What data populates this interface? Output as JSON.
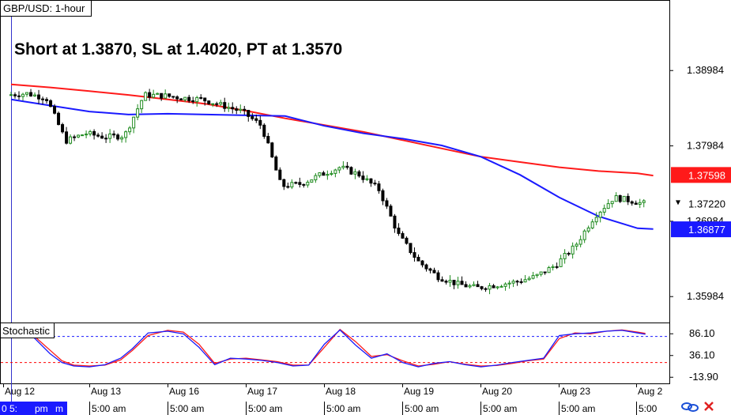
{
  "chart_data": [
    {
      "type": "candlestick",
      "title": "GBP/USD: 1-hour",
      "annotation": "Short at 1.3870, SL at 1.4020, PT at 1.3570",
      "ylim": [
        1.3564,
        1.3992
      ],
      "y_ticks": [
        "1.38984",
        "1.37984",
        "1.36984",
        "1.35984"
      ],
      "x_dates": [
        "Aug 12",
        "Aug 13",
        "Aug 16",
        "Aug 17",
        "Aug 18",
        "Aug 19",
        "Aug 20",
        "Aug 23",
        "Aug 2"
      ],
      "x_times": [
        "0 5:",
        "5:00 am",
        "5:00 am",
        "5:00 am",
        "5:00 am",
        "5:00 am",
        "5:00 am",
        "5:00 am",
        "5:00"
      ],
      "x_time_first_extra": "pm",
      "x_time_first_box": "m",
      "last_price": "1.37220",
      "series": [
        {
          "name": "",
          "color": "#ff1a1a",
          "label": "1.37598",
          "x": [
            0,
            0.5,
            1,
            1.5,
            2,
            2.5,
            3,
            3.5,
            4,
            4.5,
            5,
            5.5,
            6,
            6.5,
            7,
            7.5,
            8,
            8.2
          ],
          "values": [
            1.388,
            1.3876,
            1.3871,
            1.3866,
            1.386,
            1.3854,
            1.3845,
            1.3835,
            1.3826,
            1.3817,
            1.3806,
            1.3795,
            1.3784,
            1.3777,
            1.377,
            1.3765,
            1.3762,
            1.3759
          ]
        },
        {
          "name": "",
          "color": "#1a1aff",
          "label": "1.36877",
          "x": [
            0,
            0.5,
            1,
            1.5,
            2,
            2.5,
            3,
            3.5,
            4,
            4.5,
            5,
            5.5,
            6,
            6.5,
            7,
            7.5,
            8,
            8.2
          ],
          "values": [
            1.386,
            1.3852,
            1.3844,
            1.384,
            1.3841,
            1.384,
            1.3839,
            1.3838,
            1.3825,
            1.3815,
            1.3808,
            1.3799,
            1.3784,
            1.376,
            1.373,
            1.3705,
            1.3689,
            1.3688
          ]
        },
        {
          "name": "",
          "kind": "price",
          "x": [
            0,
            0.25,
            0.5,
            0.75,
            1,
            1.25,
            1.5,
            1.75,
            2,
            2.25,
            2.5,
            2.75,
            3,
            3.25,
            3.5,
            3.75,
            4,
            4.25,
            4.5,
            4.75,
            5,
            5.25,
            5.5,
            5.75,
            6,
            6.25,
            6.5,
            6.75,
            7,
            7.25,
            7.5,
            7.75,
            8,
            8.1
          ],
          "values": [
            1.3866,
            1.3868,
            1.3862,
            1.3805,
            1.3815,
            1.381,
            1.3812,
            1.3866,
            1.3865,
            1.3862,
            1.386,
            1.3852,
            1.3844,
            1.3825,
            1.3745,
            1.3748,
            1.376,
            1.377,
            1.376,
            1.374,
            1.368,
            1.3645,
            1.3625,
            1.3615,
            1.361,
            1.3614,
            1.3618,
            1.3625,
            1.364,
            1.3665,
            1.3705,
            1.373,
            1.3725,
            1.3722
          ]
        }
      ]
    },
    {
      "type": "line",
      "title": "Stochastic",
      "ylim": [
        -28,
        112
      ],
      "y_ticks": [
        "86.10",
        "36.10",
        "-13.90"
      ],
      "levels": [
        80,
        20
      ],
      "level_color": "#ff0000",
      "series": [
        {
          "name": "",
          "color": "#1a1aff",
          "x": [
            0,
            0.15,
            0.3,
            0.5,
            0.65,
            0.8,
            1,
            1.2,
            1.4,
            1.55,
            1.75,
            2,
            2.2,
            2.4,
            2.6,
            2.8,
            3,
            3.2,
            3.4,
            3.6,
            3.8,
            4,
            4.2,
            4.4,
            4.6,
            4.8,
            5,
            5.2,
            5.4,
            5.6,
            5.8,
            6,
            6.2,
            6.4,
            6.6,
            6.8,
            7,
            7.2,
            7.4,
            7.6,
            7.8,
            8,
            8.1
          ],
          "values": [
            85,
            88,
            76,
            40,
            20,
            12,
            10,
            15,
            30,
            52,
            88,
            92,
            86,
            55,
            15,
            30,
            28,
            25,
            20,
            12,
            14,
            62,
            95,
            60,
            30,
            40,
            20,
            10,
            18,
            22,
            15,
            10,
            14,
            20,
            25,
            30,
            82,
            86,
            88,
            92,
            94,
            88,
            85
          ]
        },
        {
          "name": "",
          "color": "#ff1a1a",
          "x": [
            0,
            0.15,
            0.3,
            0.5,
            0.65,
            0.8,
            1,
            1.2,
            1.4,
            1.55,
            1.75,
            2,
            2.2,
            2.4,
            2.6,
            2.8,
            3,
            3.2,
            3.4,
            3.6,
            3.8,
            4,
            4.2,
            4.4,
            4.6,
            4.8,
            5,
            5.2,
            5.4,
            5.6,
            5.8,
            6,
            6.2,
            6.4,
            6.6,
            6.8,
            7,
            7.2,
            7.4,
            7.6,
            7.8,
            8,
            8.1
          ],
          "values": [
            88,
            90,
            80,
            48,
            24,
            14,
            12,
            14,
            26,
            48,
            82,
            94,
            90,
            62,
            18,
            28,
            30,
            26,
            22,
            14,
            14,
            55,
            96,
            68,
            34,
            38,
            24,
            12,
            16,
            22,
            16,
            12,
            13,
            18,
            24,
            28,
            75,
            88,
            86,
            92,
            95,
            90,
            87
          ]
        }
      ]
    }
  ]
}
